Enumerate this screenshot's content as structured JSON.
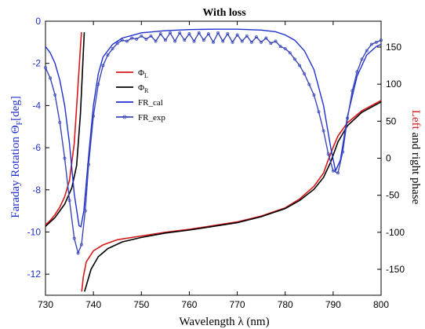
{
  "chart_data": {
    "type": "line",
    "title": "With loss",
    "xlabel": "Wavelength λ (nm)",
    "ylabel_left": "Faraday Rotation Θ",
    "ylabel_left_sub": "F",
    "ylabel_left_unit": "[deg]",
    "ylabel_right_colored": "Left",
    "ylabel_right_rest": " and right phase",
    "xlim": [
      730,
      800
    ],
    "ylim_left": [
      -13,
      0
    ],
    "ylim_right": [
      -185,
      185
    ],
    "xticks": [
      730,
      740,
      750,
      760,
      770,
      780,
      790,
      800
    ],
    "yticks_left": [
      0,
      -2,
      -4,
      -6,
      -8,
      -10,
      -12
    ],
    "yticks_right": [
      150,
      100,
      50,
      0,
      -50,
      -100,
      -150
    ],
    "legend": {
      "placement": "upper-left-center",
      "entries": [
        {
          "label": "Φ",
          "sub": "L",
          "color": "#d81818",
          "style": "line"
        },
        {
          "label": "Φ",
          "sub": "R",
          "color": "#000000",
          "style": "line"
        },
        {
          "label": "FR_cal",
          "sub": "",
          "color": "#1f2fd0",
          "style": "line"
        },
        {
          "label": "FR_exp",
          "sub": "",
          "color": "#3a47b8",
          "style": "line-marker"
        }
      ]
    },
    "series": [
      {
        "name": "Φ_L",
        "axis": "right",
        "color": "#d81818",
        "points": [
          [
            730,
            -90
          ],
          [
            731,
            -84
          ],
          [
            732,
            -76
          ],
          [
            733,
            -66
          ],
          [
            734,
            -52
          ],
          [
            735,
            -30
          ],
          [
            736,
            20
          ],
          [
            736.8,
            100
          ],
          [
            737.3,
            150
          ],
          [
            737.5,
            170
          ],
          [
            737.55,
            -180
          ],
          [
            737.9,
            -160
          ],
          [
            738.5,
            -140
          ],
          [
            740,
            -125
          ],
          [
            742,
            -117
          ],
          [
            745,
            -110
          ],
          [
            750,
            -105
          ],
          [
            755,
            -100
          ],
          [
            760,
            -96
          ],
          [
            765,
            -91
          ],
          [
            770,
            -86
          ],
          [
            775,
            -78
          ],
          [
            780,
            -67
          ],
          [
            783,
            -55
          ],
          [
            786,
            -38
          ],
          [
            788,
            -20
          ],
          [
            789,
            -2
          ],
          [
            790,
            15
          ],
          [
            791,
            30
          ],
          [
            793,
            48
          ],
          [
            796,
            64
          ],
          [
            800,
            78
          ]
        ]
      },
      {
        "name": "Φ_R",
        "axis": "right",
        "color": "#000000",
        "points": [
          [
            730,
            -92
          ],
          [
            732,
            -80
          ],
          [
            734,
            -62
          ],
          [
            735.5,
            -40
          ],
          [
            736.5,
            -10
          ],
          [
            737.3,
            60
          ],
          [
            737.8,
            130
          ],
          [
            738.1,
            170
          ],
          [
            738.15,
            -180
          ],
          [
            738.6,
            -170
          ],
          [
            739.5,
            -150
          ],
          [
            741,
            -133
          ],
          [
            743,
            -122
          ],
          [
            746,
            -113
          ],
          [
            750,
            -107
          ],
          [
            755,
            -101
          ],
          [
            760,
            -97
          ],
          [
            765,
            -92
          ],
          [
            770,
            -87
          ],
          [
            775,
            -79
          ],
          [
            780,
            -68
          ],
          [
            783,
            -57
          ],
          [
            786,
            -42
          ],
          [
            788,
            -26
          ],
          [
            789.5,
            -5
          ],
          [
            791,
            22
          ],
          [
            793,
            44
          ],
          [
            796,
            62
          ],
          [
            800,
            76
          ]
        ]
      },
      {
        "name": "FR_cal",
        "axis": "left",
        "color": "#1f2fd0",
        "points": [
          [
            730,
            -1.2
          ],
          [
            731,
            -1.5
          ],
          [
            732,
            -2.0
          ],
          [
            733,
            -2.8
          ],
          [
            734,
            -4.0
          ],
          [
            735,
            -5.8
          ],
          [
            736,
            -8.2
          ],
          [
            737,
            -9.7
          ],
          [
            737.4,
            -9.75
          ],
          [
            738,
            -9.0
          ],
          [
            739,
            -6.4
          ],
          [
            740,
            -4.0
          ],
          [
            741,
            -2.5
          ],
          [
            742,
            -1.7
          ],
          [
            744,
            -1.1
          ],
          [
            746,
            -0.8
          ],
          [
            750,
            -0.55
          ],
          [
            755,
            -0.45
          ],
          [
            760,
            -0.4
          ],
          [
            765,
            -0.38
          ],
          [
            770,
            -0.38
          ],
          [
            775,
            -0.42
          ],
          [
            778,
            -0.5
          ],
          [
            780,
            -0.65
          ],
          [
            782,
            -0.9
          ],
          [
            784,
            -1.4
          ],
          [
            786,
            -2.3
          ],
          [
            788,
            -4.0
          ],
          [
            789.5,
            -6.0
          ],
          [
            790.5,
            -7.1
          ],
          [
            791.5,
            -6.6
          ],
          [
            793,
            -4.5
          ],
          [
            795,
            -2.6
          ],
          [
            797,
            -1.6
          ],
          [
            799,
            -1.2
          ],
          [
            800,
            -1.1
          ]
        ]
      },
      {
        "name": "FR_exp",
        "axis": "left",
        "color": "#3a47b8",
        "points": [
          [
            730,
            -2.2
          ],
          [
            731,
            -2.7
          ],
          [
            732,
            -3.5
          ],
          [
            733,
            -4.8
          ],
          [
            734,
            -6.5
          ],
          [
            735,
            -8.5
          ],
          [
            736,
            -10.3
          ],
          [
            736.8,
            -11.0
          ],
          [
            737.5,
            -10.6
          ],
          [
            738.3,
            -9.0
          ],
          [
            739,
            -6.8
          ],
          [
            740,
            -4.5
          ],
          [
            741,
            -3.0
          ],
          [
            742,
            -2.1
          ],
          [
            743,
            -1.6
          ],
          [
            744,
            -1.3
          ],
          [
            745,
            -1.05
          ],
          [
            746,
            -0.9
          ],
          [
            747,
            -0.95
          ],
          [
            748,
            -0.8
          ],
          [
            749,
            -0.85
          ],
          [
            750,
            -0.7
          ],
          [
            751,
            -0.85
          ],
          [
            752,
            -0.7
          ],
          [
            753,
            -0.95
          ],
          [
            754,
            -0.6
          ],
          [
            755,
            -0.9
          ],
          [
            756,
            -0.55
          ],
          [
            757,
            -0.95
          ],
          [
            758,
            -0.55
          ],
          [
            759,
            -0.9
          ],
          [
            760,
            -0.6
          ],
          [
            761,
            -0.95
          ],
          [
            762,
            -0.55
          ],
          [
            763,
            -0.9
          ],
          [
            764,
            -0.6
          ],
          [
            765,
            -1.0
          ],
          [
            766,
            -0.55
          ],
          [
            767,
            -0.95
          ],
          [
            768,
            -0.6
          ],
          [
            769,
            -1.0
          ],
          [
            770,
            -0.65
          ],
          [
            771,
            -0.95
          ],
          [
            772,
            -0.7
          ],
          [
            773,
            -1.0
          ],
          [
            774,
            -0.75
          ],
          [
            775,
            -1.0
          ],
          [
            776,
            -0.8
          ],
          [
            777,
            -1.05
          ],
          [
            778,
            -0.95
          ],
          [
            779,
            -1.2
          ],
          [
            780,
            -1.3
          ],
          [
            781,
            -1.5
          ],
          [
            782,
            -1.8
          ],
          [
            783,
            -2.1
          ],
          [
            784,
            -2.5
          ],
          [
            785,
            -3.0
          ],
          [
            786,
            -3.5
          ],
          [
            787,
            -4.3
          ],
          [
            788,
            -5.2
          ],
          [
            789,
            -6.3
          ],
          [
            790,
            -7.1
          ],
          [
            791,
            -7.2
          ],
          [
            792,
            -6.2
          ],
          [
            793,
            -4.6
          ],
          [
            794,
            -3.3
          ],
          [
            795,
            -2.4
          ],
          [
            796,
            -1.8
          ],
          [
            797,
            -1.4
          ],
          [
            798,
            -1.1
          ],
          [
            799,
            -1.0
          ],
          [
            800,
            -0.9
          ]
        ]
      }
    ]
  }
}
